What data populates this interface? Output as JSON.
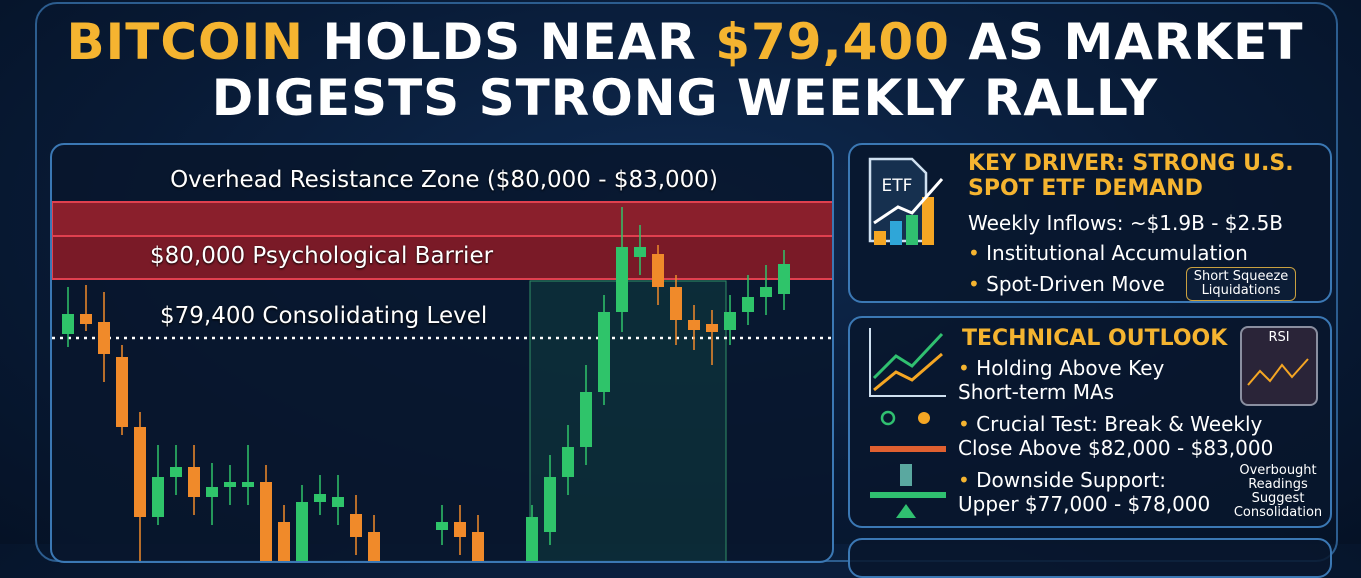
{
  "title": {
    "part1": "BITCOIN",
    "part2": "HOLDS NEAR",
    "part3": "$79,400",
    "part4": "AS MARKET",
    "part5": "DIGESTS STRONG WEEKLY RALLY"
  },
  "chart_panel": {
    "zone_label": "Overhead Resistance Zone ($80,000 - $83,000)",
    "barrier_label": "$80,000 Psychological Barrier",
    "level_label": "$79,400 Consolidating Level"
  },
  "driver": {
    "icon_label": "ETF",
    "heading": "KEY DRIVER: STRONG U.S. SPOT ETF DEMAND",
    "inflows": "Weekly Inflows: ~$1.9B - $2.5B",
    "bullets": [
      "Institutional Accumulation",
      "Spot-Driven Move"
    ],
    "callout": "Short Squeeze Liquidations"
  },
  "outlook": {
    "heading": "TECHNICAL OUTLOOK",
    "rsi_label": "RSI",
    "bullets": [
      "Holding Above Key Short-term MAs",
      "Crucial Test: Break & Weekly Close Above $82,000 - $83,000",
      "Downside Support: Upper $77,000 - $78,000"
    ],
    "note": "Overbought Readings Suggest Consolidation"
  }
}
